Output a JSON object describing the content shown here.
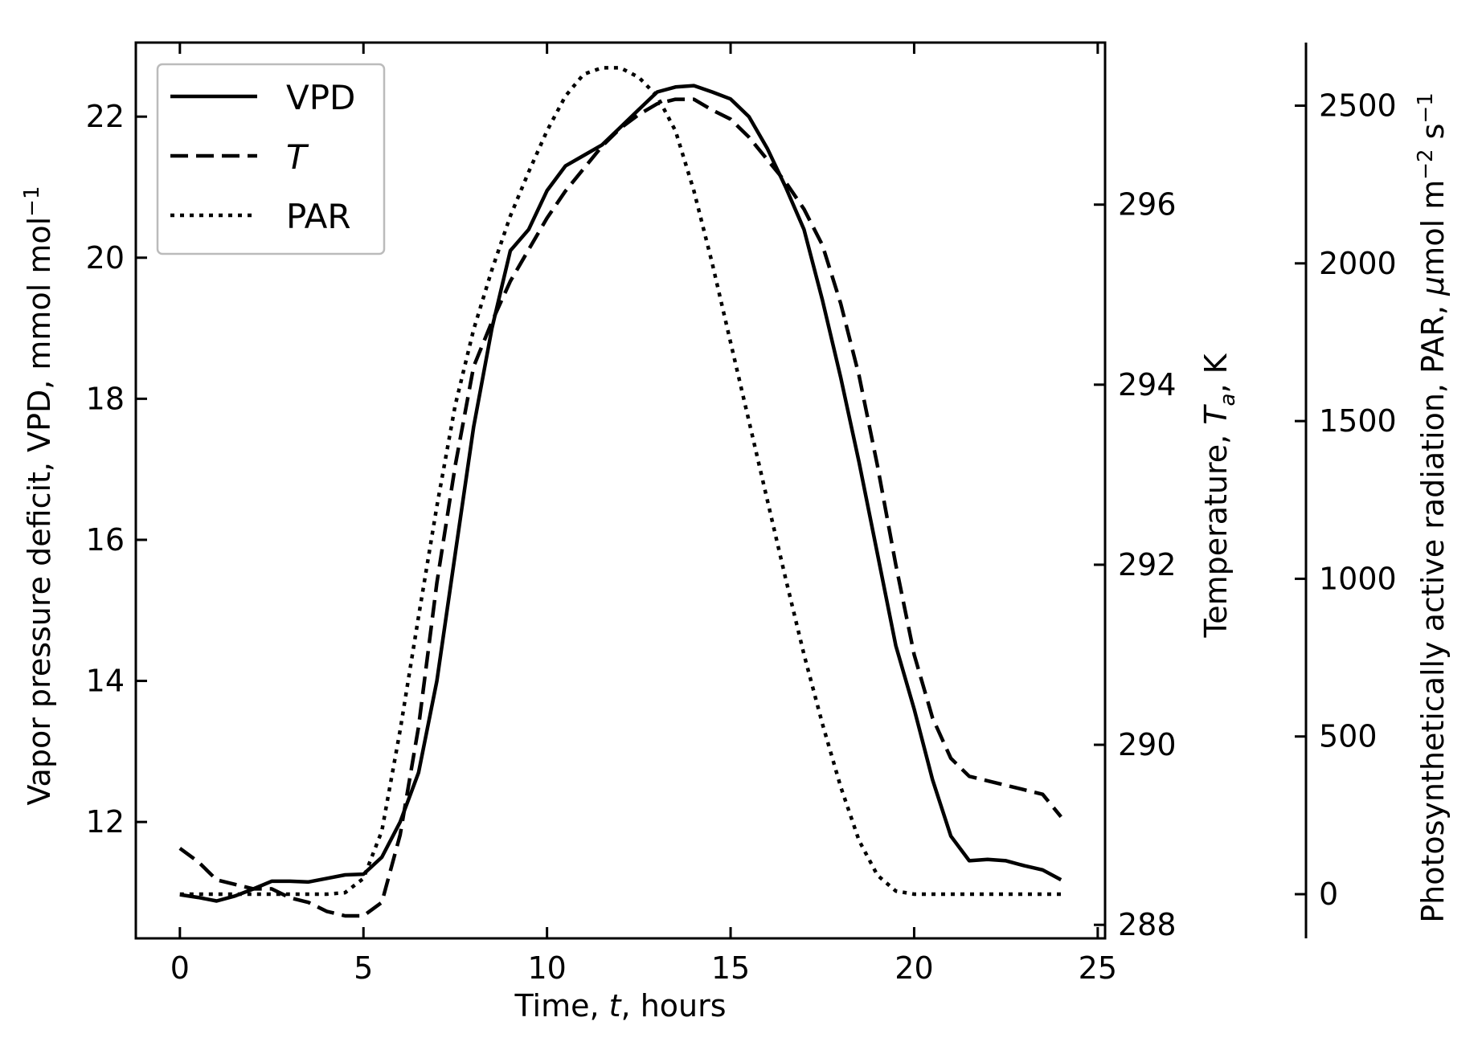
{
  "chart_data": {
    "type": "line",
    "xlabel": "Time, t, hours",
    "ylabel_left": "Vapor pressure deficit, VPD, mmol mol⁻¹",
    "ylabel_right1": "Temperature, T_a, K",
    "ylabel_right2": "Photosynthetically active radiation, PAR, μmol m⁻² s⁻¹",
    "xlim": [
      -1.2,
      25.2
    ],
    "xticks": [
      0,
      5,
      10,
      15,
      20,
      25
    ],
    "y_left": {
      "lim": [
        10.35,
        23.05
      ],
      "ticks": [
        12,
        14,
        16,
        18,
        20,
        22
      ]
    },
    "y_right1": {
      "lim": [
        287.85,
        297.8
      ],
      "ticks": [
        288,
        290,
        292,
        294,
        296
      ]
    },
    "y_right2": {
      "lim": [
        -140,
        2700
      ],
      "ticks": [
        0,
        500,
        1000,
        1500,
        2000,
        2500
      ]
    },
    "grid": false,
    "legend_position": "top-left",
    "series": [
      {
        "name": "VPD",
        "axis": "left",
        "style": "solid",
        "x": [
          0,
          0.5,
          1,
          1.5,
          2,
          2.5,
          3,
          3.5,
          4,
          4.5,
          5,
          5.5,
          6,
          6.5,
          7,
          7.5,
          8,
          8.5,
          9,
          9.5,
          10,
          10.5,
          11,
          11.5,
          12,
          12.5,
          13,
          13.5,
          14,
          14.5,
          15,
          15.5,
          16,
          16.5,
          17,
          17.5,
          18,
          18.5,
          19,
          19.5,
          20,
          20.5,
          21,
          21.5,
          22,
          22.5,
          23,
          23.5,
          24
        ],
        "values": [
          10.97,
          10.93,
          10.88,
          10.95,
          11.05,
          11.16,
          11.16,
          11.15,
          11.2,
          11.25,
          11.26,
          11.5,
          12.0,
          12.7,
          14.0,
          15.8,
          17.6,
          19.0,
          20.1,
          20.4,
          20.95,
          21.3,
          21.45,
          21.6,
          21.85,
          22.1,
          22.35,
          22.42,
          22.44,
          22.35,
          22.25,
          22.0,
          21.55,
          21.0,
          20.4,
          19.4,
          18.3,
          17.1,
          15.8,
          14.5,
          13.6,
          12.6,
          11.8,
          11.45,
          11.47,
          11.45,
          11.38,
          11.32,
          11.18
        ]
      },
      {
        "name": "T",
        "axis": "right1",
        "style": "dashed",
        "x": [
          0,
          0.5,
          1,
          1.5,
          2,
          2.5,
          3,
          3.5,
          4,
          4.5,
          5,
          5.5,
          6,
          6.5,
          7,
          7.5,
          8,
          8.5,
          9,
          9.5,
          10,
          10.5,
          11,
          11.5,
          12,
          12.5,
          13,
          13.5,
          14,
          14.5,
          15,
          15.5,
          16,
          16.5,
          17,
          17.5,
          18,
          18.5,
          19,
          19.5,
          20,
          20.5,
          21,
          21.5,
          22,
          22.5,
          23,
          23.5,
          24
        ],
        "values": [
          288.85,
          288.7,
          288.5,
          288.45,
          288.4,
          288.4,
          288.3,
          288.25,
          288.15,
          288.1,
          288.1,
          288.25,
          289.0,
          290.2,
          291.8,
          293.1,
          294.2,
          294.7,
          295.15,
          295.5,
          295.85,
          296.15,
          296.4,
          296.65,
          296.85,
          297.0,
          297.12,
          297.17,
          297.17,
          297.05,
          296.95,
          296.75,
          296.5,
          296.25,
          295.95,
          295.55,
          294.9,
          294.1,
          293.1,
          292.0,
          291.0,
          290.3,
          289.85,
          289.65,
          289.6,
          289.55,
          289.5,
          289.45,
          289.2
        ]
      },
      {
        "name": "PAR",
        "axis": "right2",
        "style": "dotted",
        "x": [
          0,
          0.5,
          1,
          1.5,
          2,
          2.5,
          3,
          3.5,
          4,
          4.5,
          5,
          5.5,
          6,
          6.5,
          7,
          7.5,
          8,
          8.5,
          9,
          9.5,
          10,
          10.5,
          11,
          11.5,
          12,
          12.5,
          13,
          13.5,
          14,
          14.5,
          15,
          15.5,
          16,
          16.5,
          17,
          17.5,
          18,
          18.5,
          19,
          19.5,
          20,
          20.5,
          21,
          21.5,
          22,
          22.5,
          23,
          23.5,
          24
        ],
        "values": [
          0,
          0,
          0,
          0,
          0,
          0,
          0,
          0,
          0,
          5,
          50,
          200,
          520,
          880,
          1230,
          1550,
          1790,
          1980,
          2150,
          2290,
          2420,
          2530,
          2600,
          2620,
          2620,
          2590,
          2530,
          2420,
          2230,
          2000,
          1750,
          1500,
          1250,
          1000,
          760,
          540,
          340,
          170,
          60,
          10,
          0,
          0,
          0,
          0,
          0,
          0,
          0,
          0,
          0
        ]
      }
    ]
  }
}
